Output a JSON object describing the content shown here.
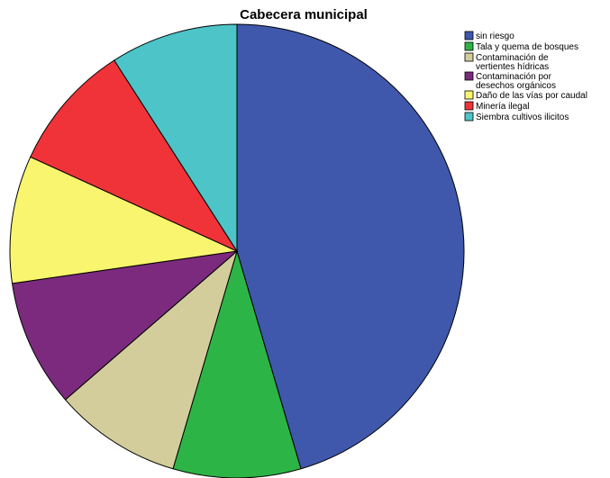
{
  "chart_data": {
    "type": "pie",
    "title": "Cabecera municipal",
    "legend_position": "top-right",
    "slices": [
      {
        "label": "sin riesgo",
        "value": 45.5,
        "color": "#3f58ab"
      },
      {
        "label": "Tala  y quema de bosques",
        "value": 9.1,
        "color": "#2db446"
      },
      {
        "label": "Contaminación  de vertientes hídricas",
        "value": 9.1,
        "color": "#d2cd9b"
      },
      {
        "label": "Contaminación por desechos  orgánicos",
        "value": 9.1,
        "color": "#7b2a7d"
      },
      {
        "label": "Daño de las vías por caudal",
        "value": 9.1,
        "color": "#f9f56f"
      },
      {
        "label": "Minería ilegal",
        "value": 9.1,
        "color": "#f03339"
      },
      {
        "label": "Siembra cultivos ilicitos",
        "value": 9.1,
        "color": "#4cc4c8"
      }
    ],
    "legend": [
      [
        "sin riesgo"
      ],
      [
        "Tala  y quema de bosques"
      ],
      [
        "Contaminación  de",
        "vertientes hídricas"
      ],
      [
        "Contaminación por",
        "desechos  orgánicos"
      ],
      [
        "Daño de las vías por caudal"
      ],
      [
        "Minería ilegal"
      ],
      [
        "Siembra cultivos ilicitos"
      ]
    ]
  }
}
